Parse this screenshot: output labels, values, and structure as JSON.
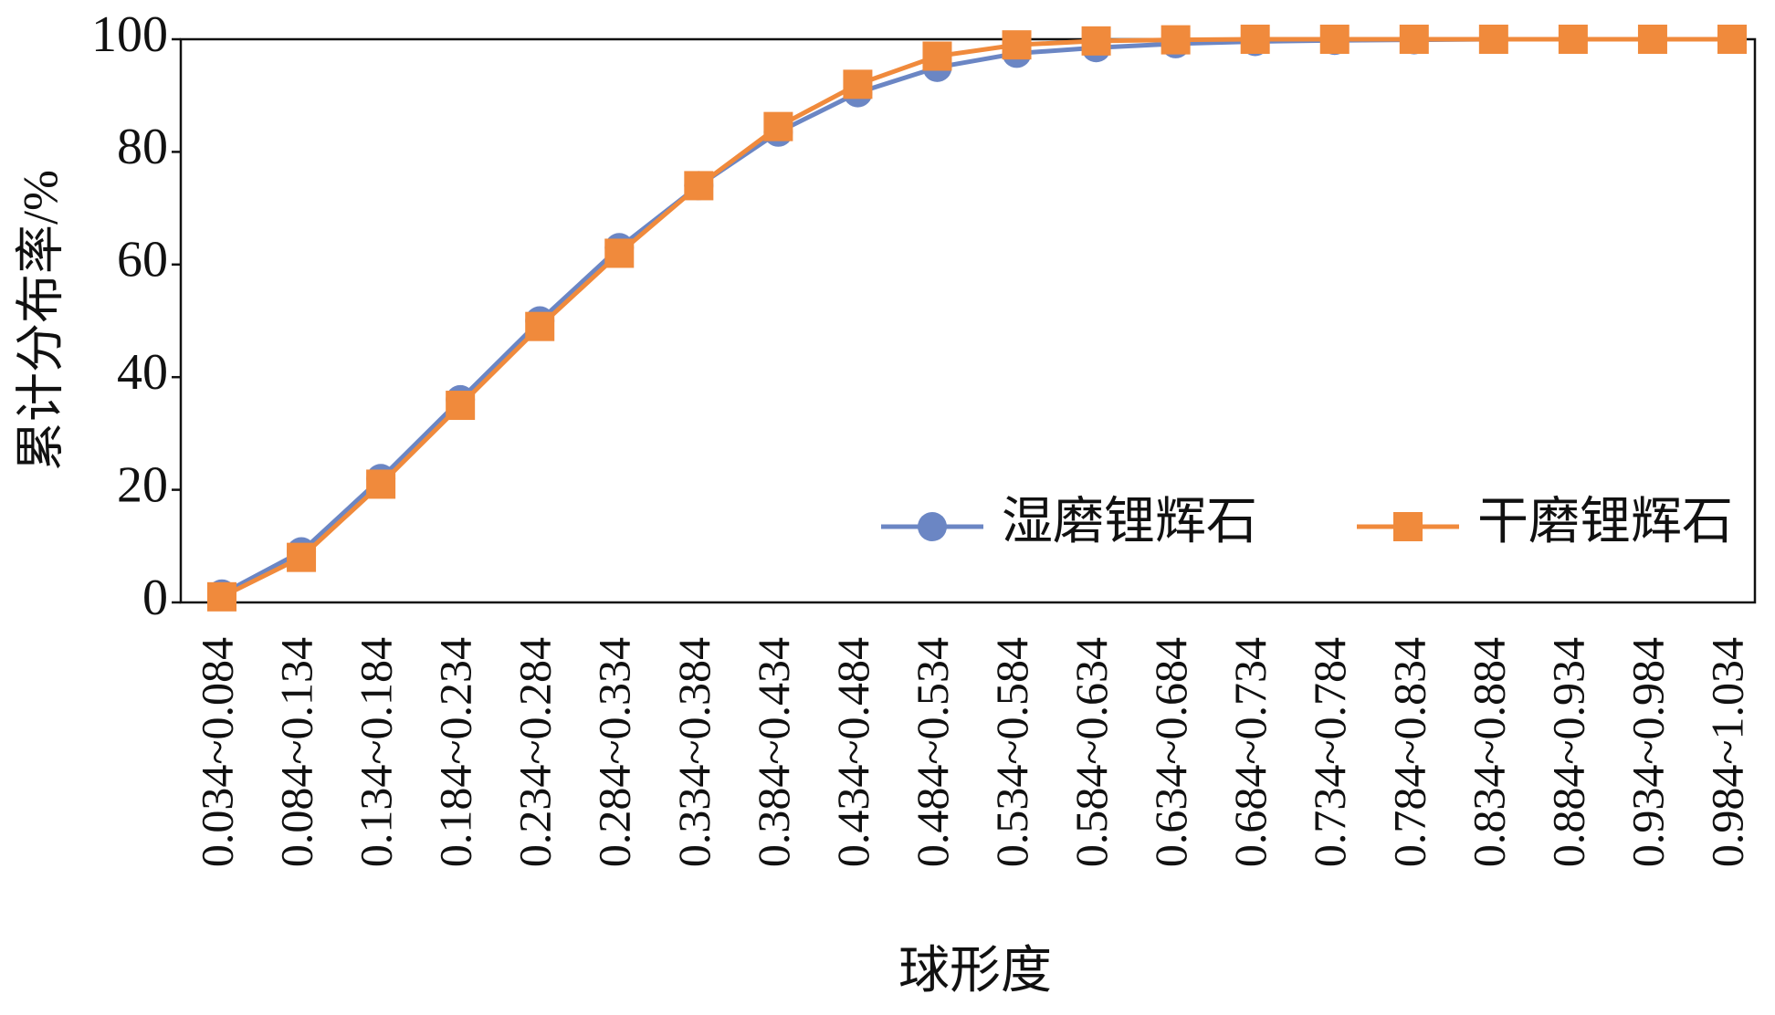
{
  "chart_data": {
    "type": "line",
    "x_label": "球形度",
    "y_label": "累计分布率/%",
    "categories": [
      "0.034~0.084",
      "0.084~0.134",
      "0.134~0.184",
      "0.184~0.234",
      "0.234~0.284",
      "0.284~0.334",
      "0.334~0.384",
      "0.384~0.434",
      "0.434~0.484",
      "0.484~0.534",
      "0.534~0.584",
      "0.584~0.634",
      "0.634~0.684",
      "0.684~0.734",
      "0.734~0.784",
      "0.784~0.834",
      "0.834~0.884",
      "0.884~0.934",
      "0.934~0.984",
      "0.984~1.034"
    ],
    "series": [
      {
        "name": "湿磨锂辉石",
        "color": "#6b86c4",
        "marker": "circle",
        "values": [
          1.5,
          9,
          22,
          36,
          50,
          63,
          74,
          83.5,
          90.5,
          95,
          97.5,
          98.5,
          99.2,
          99.6,
          99.8,
          99.9,
          100,
          100,
          100,
          100
        ]
      },
      {
        "name": "干磨锂辉石",
        "color": "#f08a3c",
        "marker": "square",
        "values": [
          1,
          8,
          21,
          35,
          49,
          62,
          74,
          84.5,
          92,
          97,
          99,
          99.7,
          99.9,
          100,
          100,
          100,
          100,
          100,
          100,
          100
        ]
      }
    ],
    "ylim": [
      0,
      100
    ],
    "yticks": [
      0,
      20,
      40,
      60,
      80,
      100
    ],
    "legend": "lower right"
  }
}
